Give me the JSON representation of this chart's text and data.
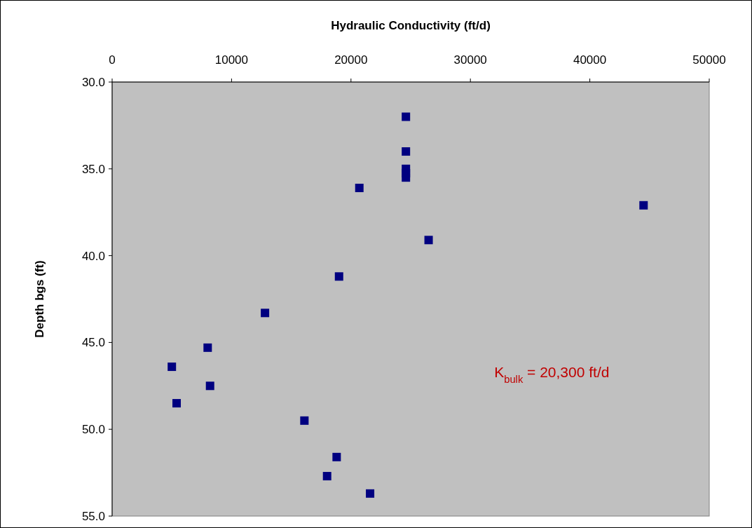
{
  "chart_data": {
    "type": "scatter",
    "xlabel": "Hydraulic Conductivity  (ft/d)",
    "ylabel": "Depth bgs (ft)",
    "x": [
      24600,
      24600,
      24600,
      24600,
      24600,
      20700,
      44500,
      26500,
      19000,
      12800,
      8000,
      5000,
      8200,
      5400,
      16100,
      18800,
      18000,
      21600
    ],
    "series": [
      {
        "color": "#000080",
        "values": [
          32.0,
          34.0,
          35.0,
          35.25,
          35.5,
          36.1,
          37.1,
          39.1,
          41.2,
          43.3,
          45.3,
          46.4,
          47.5,
          48.5,
          49.5,
          51.6,
          52.7,
          53.7
        ]
      }
    ],
    "xlim": [
      0,
      50000
    ],
    "xticks": [
      0,
      10000,
      20000,
      30000,
      40000,
      50000
    ],
    "ylim": [
      55,
      30
    ],
    "yticks": [
      {
        "value": 30,
        "label": "30.0"
      },
      {
        "value": 35,
        "label": "35.0"
      },
      {
        "value": 40,
        "label": "40.0"
      },
      {
        "value": 45,
        "label": "45.0"
      },
      {
        "value": 50,
        "label": "50.0"
      },
      {
        "value": 55,
        "label": "55.0"
      }
    ],
    "marker": "square",
    "grid": false,
    "annotations": [
      "K$_{bulk}$ = 20,300 ft/d"
    ]
  }
}
